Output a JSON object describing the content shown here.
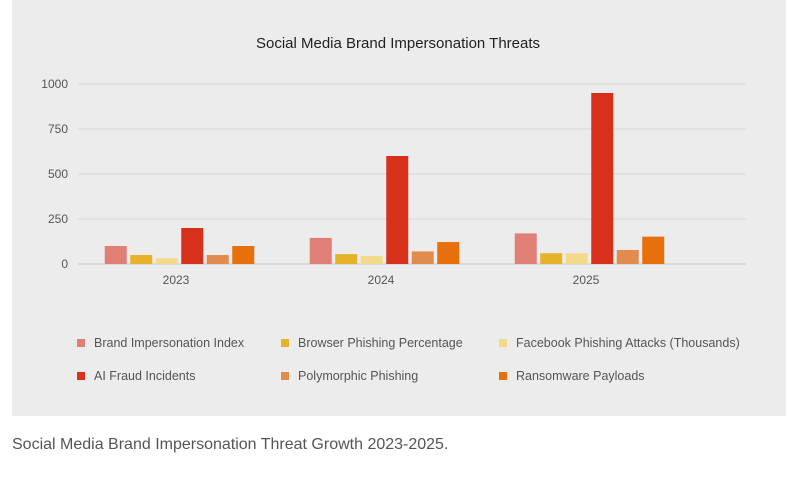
{
  "figure": {
    "caption": "Social Media Brand Impersonation Threat Growth 2023-2025."
  },
  "chart_data": {
    "type": "bar",
    "title": "Social Media Brand Impersonation Threats",
    "xlabel": "",
    "ylabel": "",
    "ylim": [
      0,
      1000
    ],
    "yticks": [
      0,
      250,
      500,
      750,
      1000
    ],
    "grid": true,
    "legend_position": "bottom",
    "categories": [
      "2023",
      "2024",
      "2025"
    ],
    "series": [
      {
        "name": "Brand Impersonation Index",
        "values": [
          100,
          145,
          170
        ],
        "color": "#e07f76"
      },
      {
        "name": "Browser Phishing Percentage",
        "values": [
          50,
          55,
          60
        ],
        "color": "#e6b227"
      },
      {
        "name": "Facebook Phishing Attacks (Thousands)",
        "values": [
          32,
          45,
          60
        ],
        "color": "#f3d98a"
      },
      {
        "name": "AI Fraud Incidents",
        "values": [
          200,
          600,
          950
        ],
        "color": "#d7301b"
      },
      {
        "name": "Polymorphic Phishing",
        "values": [
          50,
          70,
          78
        ],
        "color": "#e28b4e"
      },
      {
        "name": "Ransomware Payloads",
        "values": [
          100,
          122,
          152
        ],
        "color": "#e8700c"
      }
    ]
  }
}
